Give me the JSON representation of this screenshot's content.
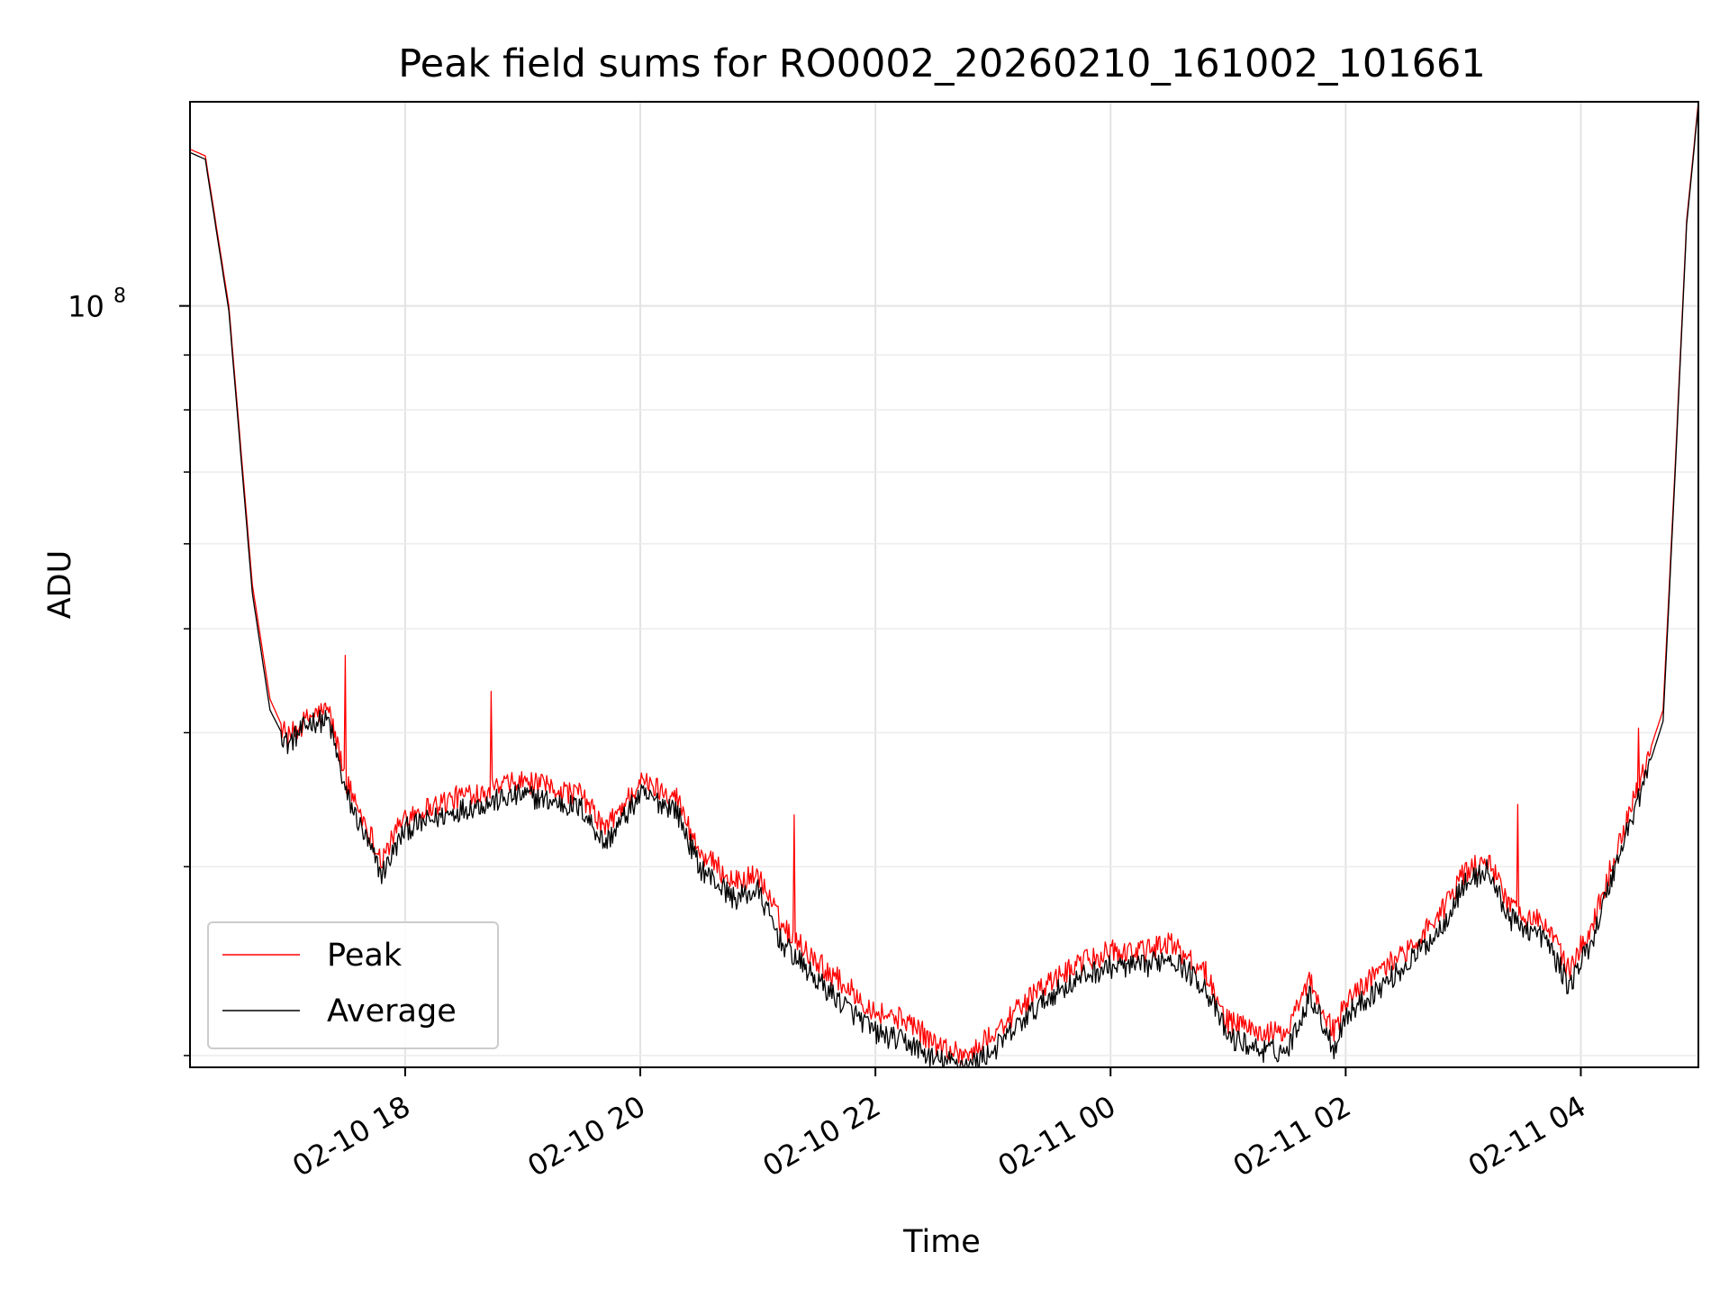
{
  "chart_data": {
    "type": "line",
    "title": "Peak field sums for RO0002_20260210_161002_101661",
    "xlabel": "Time",
    "ylabel": "ADU",
    "yscale": "log",
    "grid": true,
    "legend_position": "lower-left",
    "x_tick_labels": [
      "02-10 18",
      "02-10 20",
      "02-10 22",
      "02-11 00",
      "02-11 02",
      "02-11 04"
    ],
    "x_ticks_hours": [
      18,
      20,
      22,
      24,
      26,
      28
    ],
    "xlim_hours": [
      16.17,
      29.0
    ],
    "y_tick_labels": [
      "10",
      "8"
    ],
    "y_major_tick": 100000000,
    "ylim": [
      19500000,
      155000000
    ],
    "y_minor_ticks": [
      20000000,
      30000000,
      40000000,
      50000000,
      60000000,
      70000000,
      80000000,
      90000000
    ],
    "series": [
      {
        "name": "Peak",
        "color": "#ff0000",
        "x_hours": [
          16.17,
          16.3,
          16.5,
          16.7,
          16.85,
          17.0,
          17.2,
          17.35,
          17.5,
          17.8,
          18.0,
          18.5,
          19.0,
          19.5,
          19.7,
          20.0,
          20.3,
          20.5,
          20.8,
          21.0,
          21.2,
          21.5,
          22.0,
          22.3,
          22.5,
          22.8,
          23.0,
          23.3,
          23.5,
          23.8,
          24.0,
          24.3,
          24.5,
          24.8,
          25.0,
          25.3,
          25.5,
          25.7,
          25.9,
          26.0,
          26.3,
          26.5,
          26.8,
          27.0,
          27.2,
          27.4,
          27.7,
          27.9,
          28.1,
          28.3,
          28.5,
          28.7,
          28.8,
          28.9,
          29.0
        ],
        "values": [
          140000000,
          138000000,
          100000000,
          55000000,
          43000000,
          39500000,
          41500000,
          42000000,
          36000000,
          30500000,
          33500000,
          35000000,
          36000000,
          35000000,
          32500000,
          36000000,
          35000000,
          31000000,
          29000000,
          29500000,
          26500000,
          24500000,
          22000000,
          21500000,
          20500000,
          20000000,
          21000000,
          22500000,
          23500000,
          24500000,
          25000000,
          25000000,
          25500000,
          24000000,
          21500000,
          21000000,
          21000000,
          23500000,
          21000000,
          22500000,
          24000000,
          25000000,
          27000000,
          29500000,
          30500000,
          27500000,
          26500000,
          24000000,
          26500000,
          31000000,
          36000000,
          42000000,
          70000000,
          120000000,
          155000000
        ]
      },
      {
        "name": "Average",
        "color": "#000000",
        "x_hours": [
          16.17,
          16.3,
          16.5,
          16.7,
          16.85,
          17.0,
          17.2,
          17.35,
          17.5,
          17.8,
          18.0,
          18.5,
          19.0,
          19.5,
          19.7,
          20.0,
          20.3,
          20.5,
          20.8,
          21.0,
          21.2,
          21.5,
          22.0,
          22.3,
          22.5,
          22.8,
          23.0,
          23.3,
          23.5,
          23.8,
          24.0,
          24.3,
          24.5,
          24.8,
          25.0,
          25.3,
          25.5,
          25.7,
          25.9,
          26.0,
          26.3,
          26.5,
          26.8,
          27.0,
          27.2,
          27.4,
          27.7,
          27.9,
          28.1,
          28.3,
          28.5,
          28.7,
          28.8,
          28.9,
          29.0
        ],
        "values": [
          139000000,
          137000000,
          99000000,
          54000000,
          42000000,
          39000000,
          41000000,
          41000000,
          35000000,
          29500000,
          32500000,
          34000000,
          35000000,
          34000000,
          31500000,
          35000000,
          34000000,
          30000000,
          28000000,
          28500000,
          25500000,
          23500000,
          21000000,
          20500000,
          19800000,
          19600000,
          20200000,
          21800000,
          22800000,
          23800000,
          24200000,
          24200000,
          24800000,
          23200000,
          20800000,
          20200000,
          20200000,
          22800000,
          20300000,
          21800000,
          23200000,
          24200000,
          26200000,
          28800000,
          29800000,
          26800000,
          25700000,
          23200000,
          25700000,
          30200000,
          35000000,
          41000000,
          69000000,
          119000000,
          154000000
        ]
      }
    ]
  }
}
